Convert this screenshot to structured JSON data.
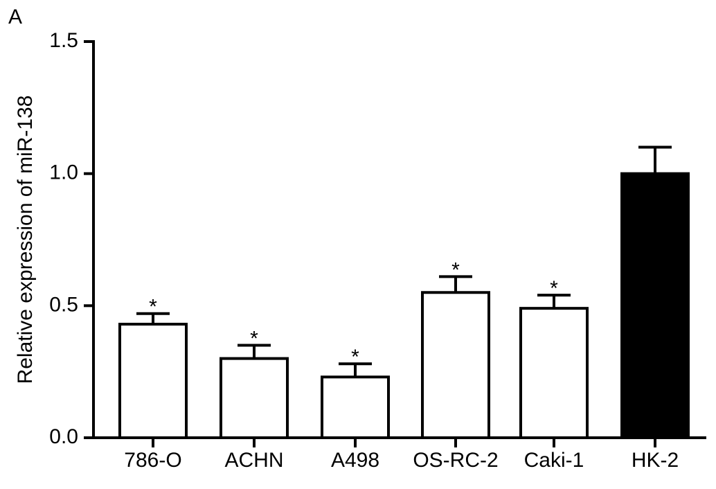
{
  "chart_data": {
    "type": "bar",
    "panel_label": "A",
    "ylabel": "Relative expression of miR-138",
    "categories": [
      "786-O",
      "ACHN",
      "A498",
      "OS-RC-2",
      "Caki-1",
      "HK-2"
    ],
    "values": [
      0.43,
      0.3,
      0.23,
      0.55,
      0.49,
      1.0
    ],
    "errors": [
      0.04,
      0.05,
      0.05,
      0.06,
      0.05,
      0.1
    ],
    "annotations": [
      "*",
      "*",
      "*",
      "*",
      "*",
      null
    ],
    "colors": [
      "#ffffff",
      "#ffffff",
      "#ffffff",
      "#ffffff",
      "#ffffff",
      "#000000"
    ],
    "ylim": [
      0,
      1.5
    ],
    "yticks": [
      {
        "value": 0,
        "label": "0.0"
      },
      0.5,
      {
        "value": 1,
        "label": "1.0"
      },
      1.5
    ],
    "grid": false
  }
}
